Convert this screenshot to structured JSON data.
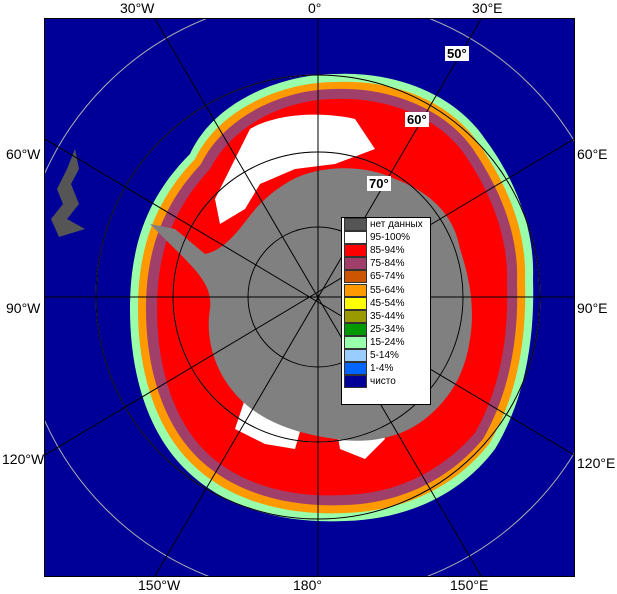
{
  "axis_labels": {
    "top": [
      "30°W",
      "0°",
      "30°E"
    ],
    "left": [
      "60°W",
      "90°W",
      "120°W"
    ],
    "right": [
      "60°E",
      "90°E",
      "120°E"
    ],
    "bottom": [
      "150°W",
      "180°",
      "150°E"
    ]
  },
  "latitude_labels": [
    "50°",
    "60°",
    "70°"
  ],
  "legend": [
    {
      "label": "нет данных",
      "color": "#555555"
    },
    {
      "label": "95-100%",
      "color": "#ffffff"
    },
    {
      "label": "85-94%",
      "color": "#ff0000"
    },
    {
      "label": "75-84%",
      "color": "#a0406a"
    },
    {
      "label": "65-74%",
      "color": "#cc5500"
    },
    {
      "label": "55-64%",
      "color": "#ff9900"
    },
    {
      "label": "45-54%",
      "color": "#ffff00"
    },
    {
      "label": "35-44%",
      "color": "#999900"
    },
    {
      "label": "25-34%",
      "color": "#009900"
    },
    {
      "label": "15-24%",
      "color": "#99ffaa"
    },
    {
      "label": "5-14%",
      "color": "#99ccff"
    },
    {
      "label": "1-4%",
      "color": "#0066ff"
    },
    {
      "label": "чисто",
      "color": "#000099"
    }
  ]
}
